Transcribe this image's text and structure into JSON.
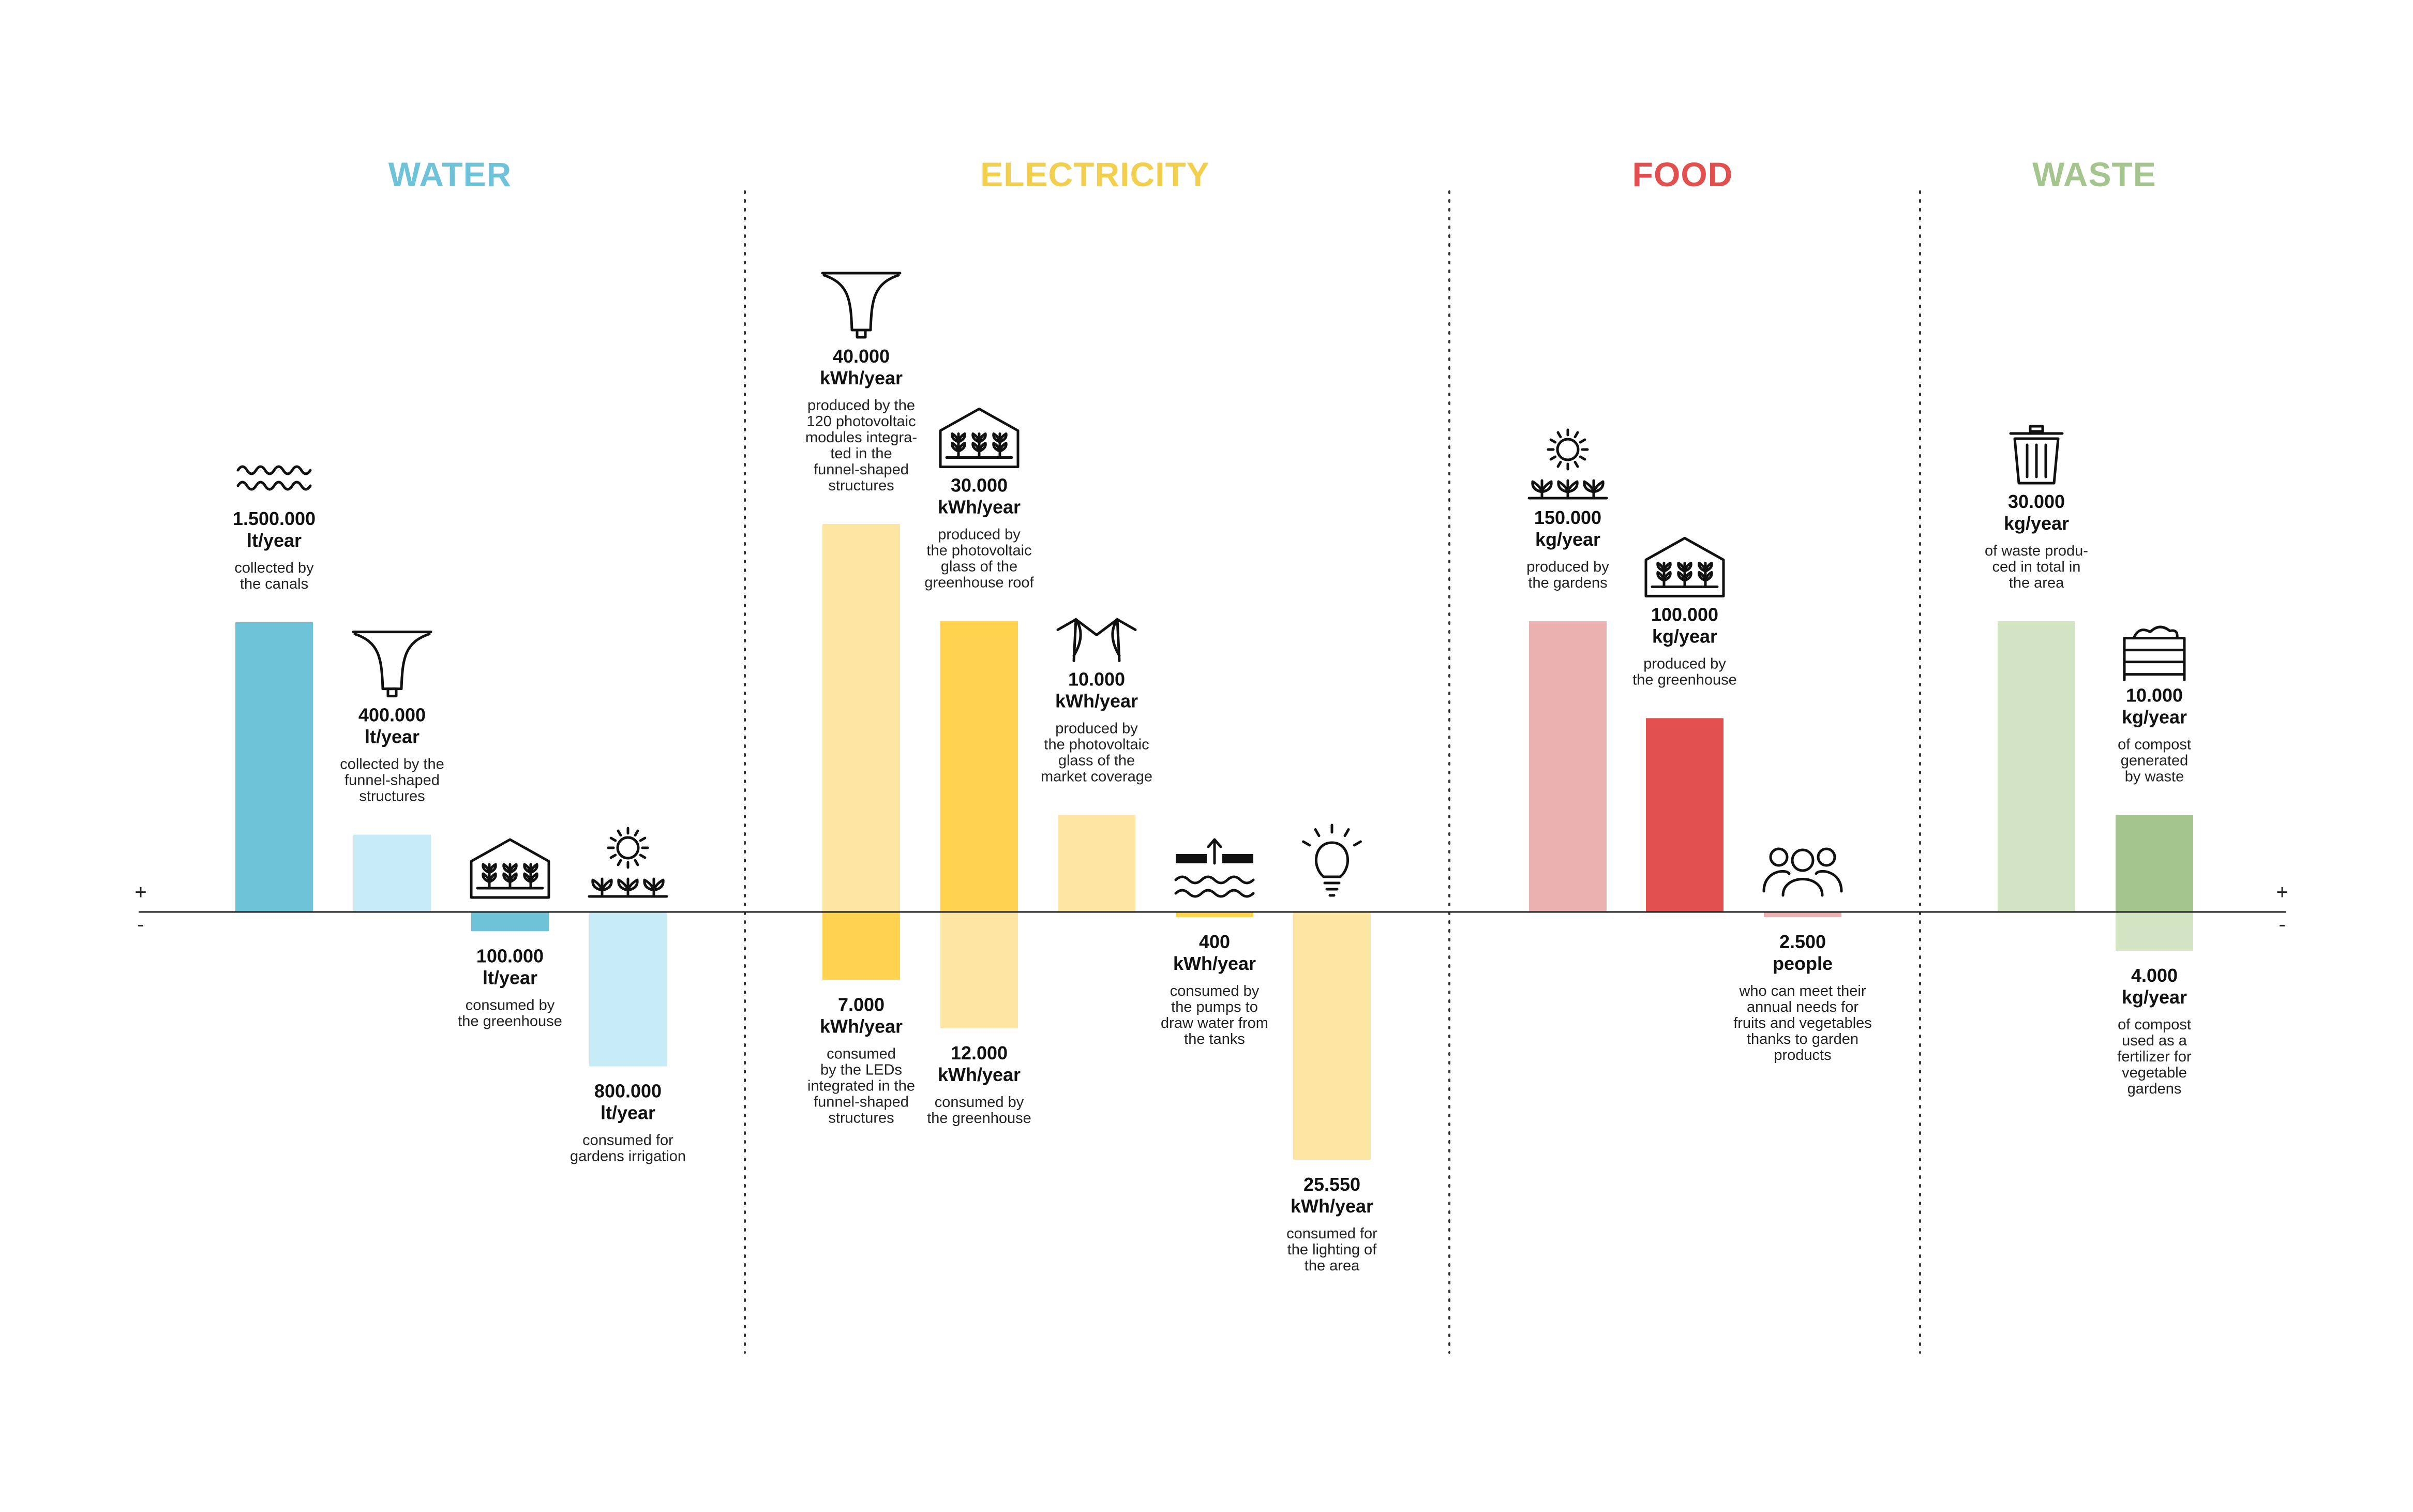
{
  "signs": {
    "plus": "+",
    "minus": "-"
  },
  "colors": {
    "water": "#6fc3d9",
    "water_light": "#c8ecf7",
    "electricity": "#ffd24f",
    "electricity_light": "#fde6a3",
    "food": "#e14f4f",
    "food_light": "#eab1b0",
    "waste": "#a5c58e",
    "waste_light": "#d3e4c3"
  },
  "chart_data": {
    "type": "bar",
    "title": "",
    "baseline": "zero line with + above and - below",
    "categories": [
      {
        "name": "WATER",
        "color": "#6fc3d9",
        "bars": [
          {
            "value": 1500000,
            "value_label": "1.500.000",
            "unit": "lt/year",
            "sign": "+",
            "shade": "dark",
            "icon": "waves-icon",
            "desc": [
              "collected by",
              "the canals"
            ]
          },
          {
            "value": 400000,
            "value_label": "400.000",
            "unit": "lt/year",
            "sign": "+",
            "shade": "light",
            "icon": "funnel-icon",
            "desc": [
              "collected by the",
              "funnel-shaped",
              "structures"
            ]
          },
          {
            "value": 100000,
            "value_label": "100.000",
            "unit": "lt/year",
            "sign": "-",
            "shade": "dark",
            "icon": "greenhouse-icon",
            "desc": [
              "consumed by",
              "the greenhouse"
            ]
          },
          {
            "value": 800000,
            "value_label": "800.000",
            "unit": "lt/year",
            "sign": "-",
            "shade": "light",
            "icon": "garden-sun-icon",
            "desc": [
              "consumed for",
              "gardens irrigation"
            ]
          }
        ]
      },
      {
        "name": "ELECTRICITY",
        "color": "#f2cf4f",
        "bars": [
          {
            "value": 40000,
            "value_label": "40.000",
            "unit": "kWh/year",
            "sign": "+",
            "shade": "light",
            "icon": "funnel-icon",
            "desc": [
              "produced by the",
              "120 photovoltaic",
              "modules integra-",
              "ted in the",
              "funnel-shaped",
              "structures"
            ]
          },
          {
            "value": 7000,
            "value_label": "7.000",
            "unit": "kWh/year",
            "sign": "-",
            "shade": "dark",
            "icon": "",
            "desc": [
              "consumed",
              "by the LEDs",
              "integrated in the",
              "funnel-shaped",
              "structures"
            ]
          },
          {
            "value": 30000,
            "value_label": "30.000",
            "unit": "kWh/year",
            "sign": "+",
            "shade": "dark",
            "icon": "greenhouse-icon",
            "desc": [
              "produced by",
              "the photovoltaic",
              "glass of the",
              "greenhouse roof"
            ]
          },
          {
            "value": 12000,
            "value_label": "12.000",
            "unit": "kWh/year",
            "sign": "-",
            "shade": "light",
            "icon": "",
            "desc": [
              "consumed by",
              "the greenhouse"
            ]
          },
          {
            "value": 10000,
            "value_label": "10.000",
            "unit": "kWh/year",
            "sign": "+",
            "shade": "light",
            "icon": "market-roof-icon",
            "desc": [
              "produced by",
              "the photovoltaic",
              "glass of the",
              "market coverage"
            ]
          },
          {
            "value": 400,
            "value_label": "400",
            "unit": "kWh/year",
            "sign": "-",
            "shade": "dark",
            "icon": "pump-icon",
            "desc": [
              "consumed by",
              "the pumps to",
              "draw water from",
              "the tanks"
            ]
          },
          {
            "value": 25550,
            "value_label": "25.550",
            "unit": "kWh/year",
            "sign": "-",
            "shade": "light",
            "icon": "lightbulb-icon",
            "desc": [
              "consumed for",
              "the lighting of",
              "the area"
            ]
          }
        ]
      },
      {
        "name": "FOOD",
        "color": "#e14f4f",
        "bars": [
          {
            "value": 150000,
            "value_label": "150.000",
            "unit": "kg/year",
            "sign": "+",
            "shade": "light",
            "icon": "garden-sun-icon",
            "desc": [
              "produced by",
              "the gardens"
            ]
          },
          {
            "value": 100000,
            "value_label": "100.000",
            "unit": "kg/year",
            "sign": "+",
            "shade": "dark",
            "icon": "greenhouse-icon",
            "desc": [
              "produced by",
              "the greenhouse"
            ]
          },
          {
            "value": 2500,
            "value_label": "2.500",
            "unit": "people",
            "sign": "-",
            "shade": "light",
            "icon": "people-icon",
            "desc": [
              "who can meet their",
              "annual needs for",
              "fruits and vegetables",
              "thanks to garden",
              "products"
            ]
          }
        ]
      },
      {
        "name": "WASTE",
        "color": "#a5c58e",
        "bars": [
          {
            "value": 30000,
            "value_label": "30.000",
            "unit": "kg/year",
            "sign": "+",
            "shade": "light",
            "icon": "trash-bin-icon",
            "desc": [
              "of waste produ-",
              "ced in total in",
              "the area"
            ]
          },
          {
            "value": 10000,
            "value_label": "10.000",
            "unit": "kg/year",
            "sign": "+",
            "shade": "dark",
            "icon": "compost-bin-icon",
            "desc": [
              "of compost",
              "generated",
              "by waste"
            ]
          },
          {
            "value": 4000,
            "value_label": "4.000",
            "unit": "kg/year",
            "sign": "-",
            "shade": "light",
            "icon": "",
            "desc": [
              "of compost",
              "used as a",
              "fertilizer for",
              "vegetable",
              "gardens"
            ]
          }
        ]
      }
    ]
  }
}
